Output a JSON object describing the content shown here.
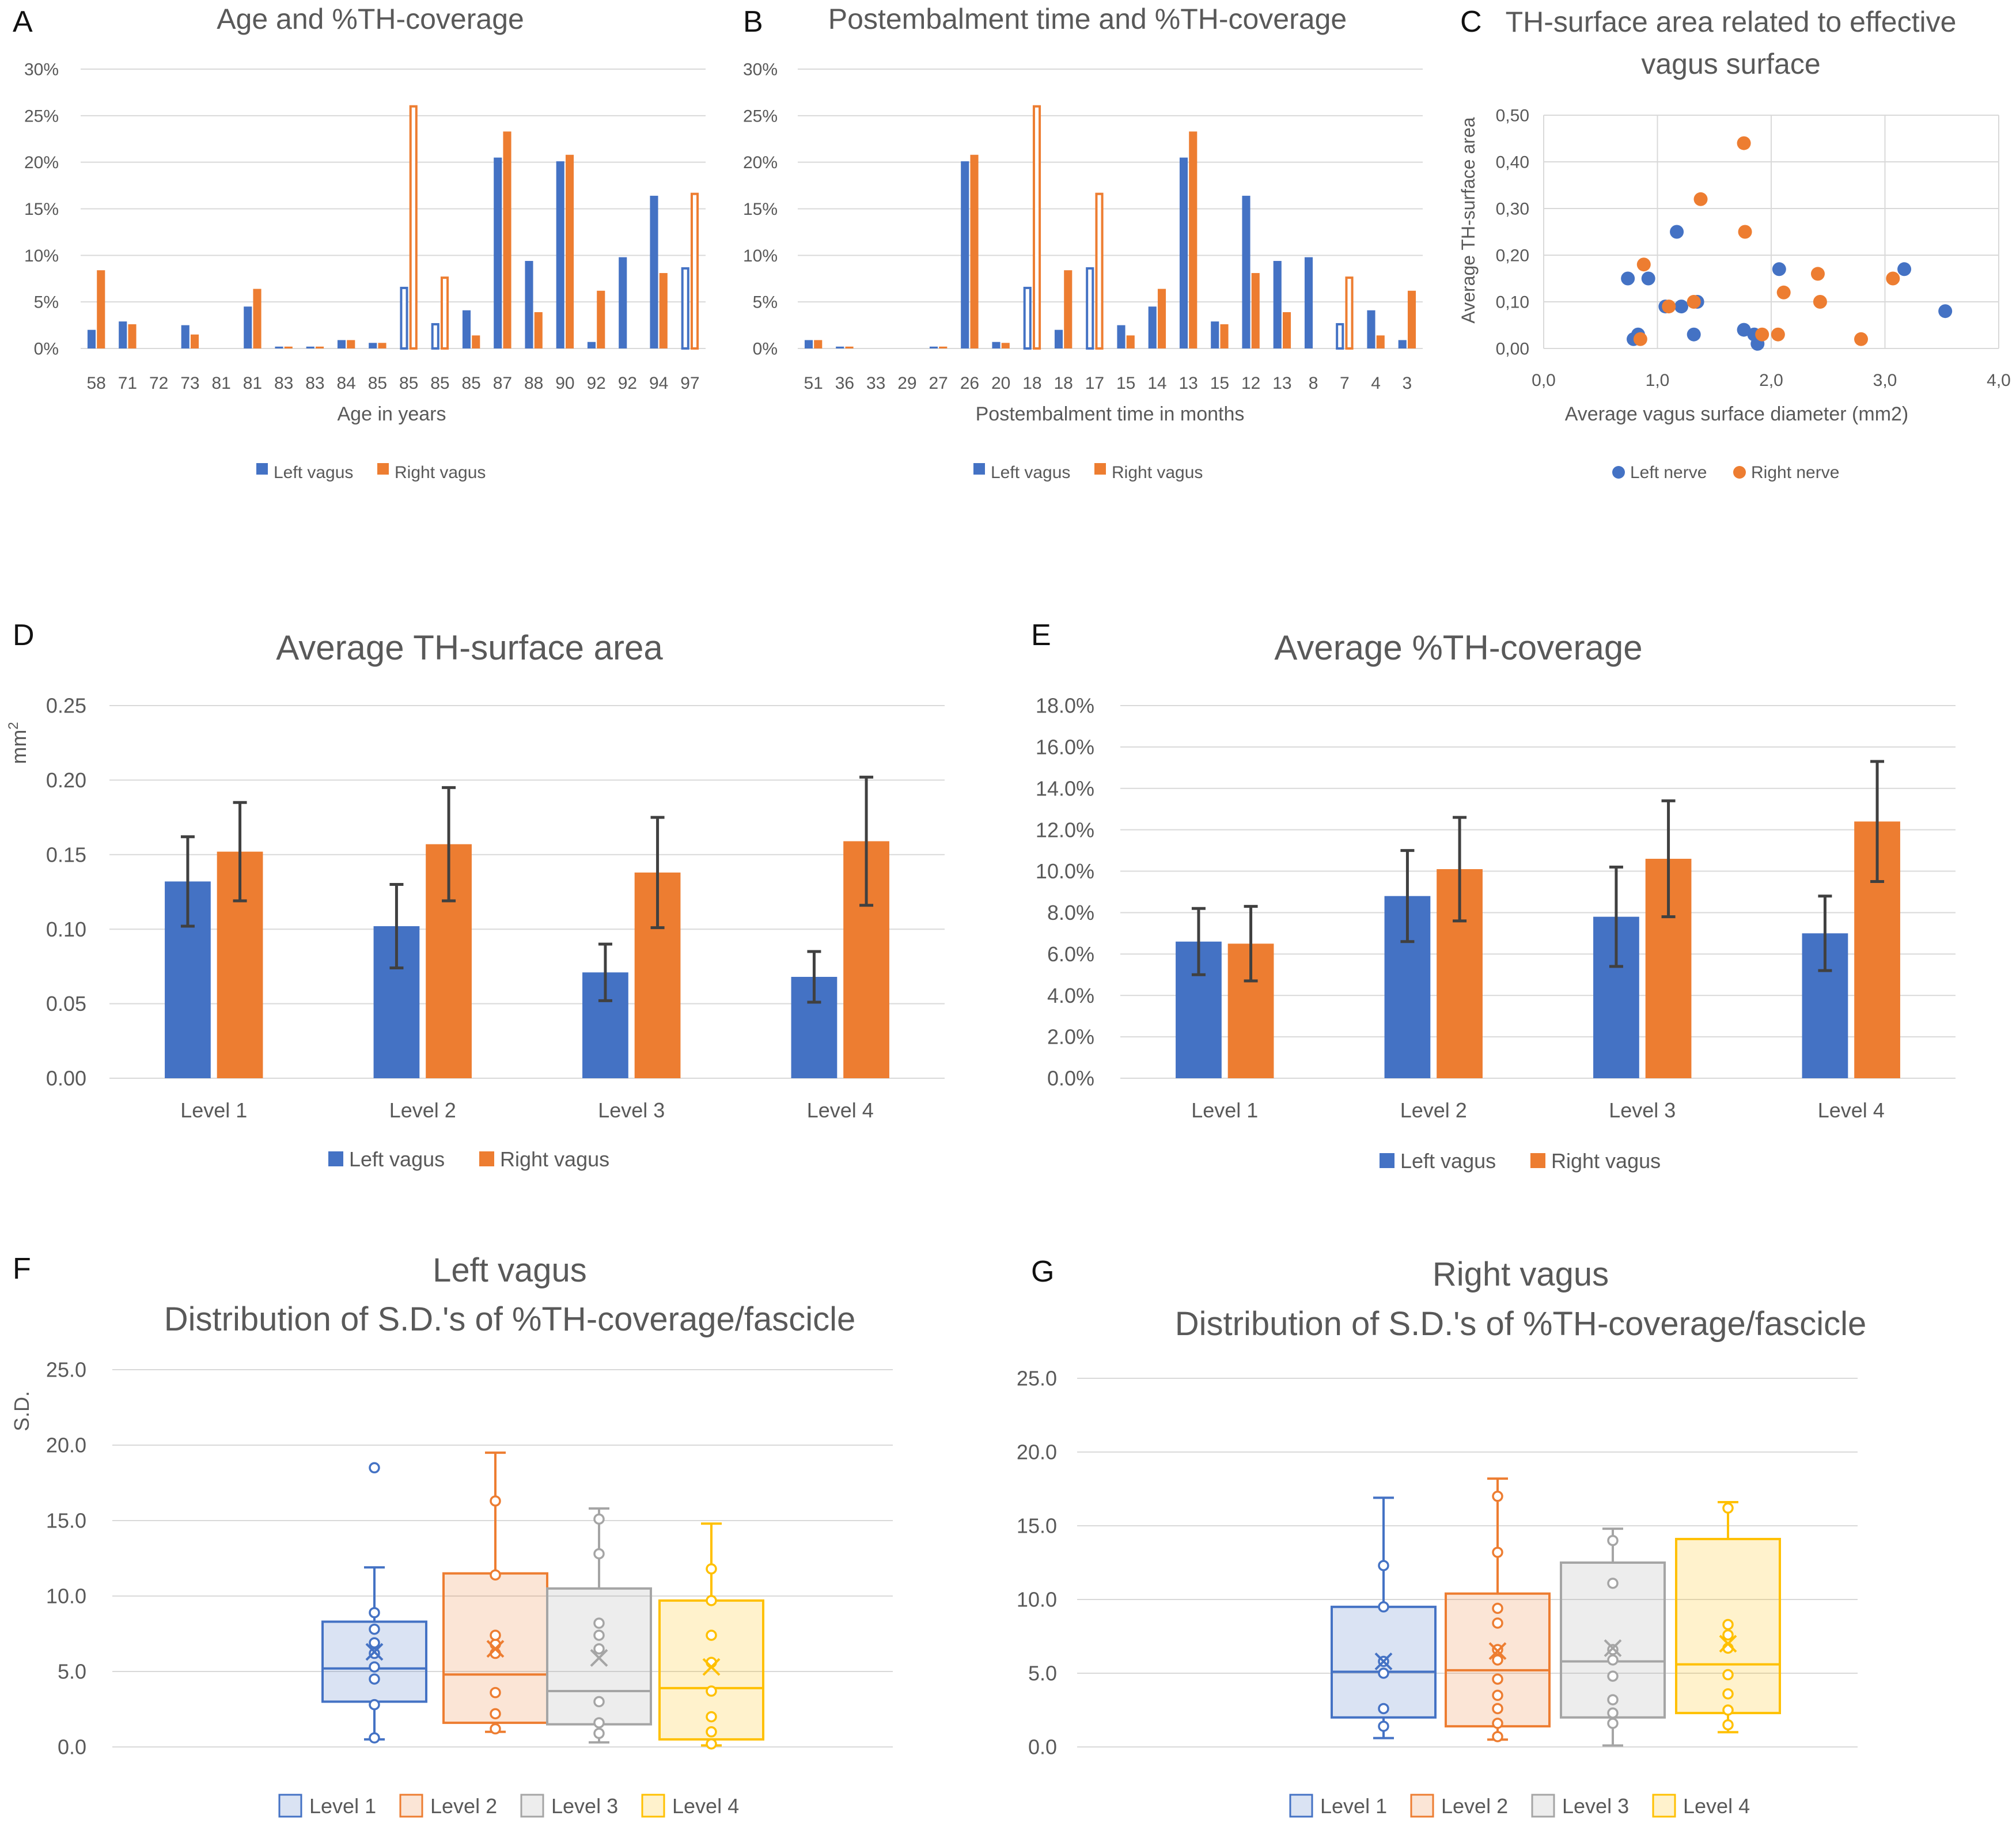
{
  "colors": {
    "left": "#4472C4",
    "right": "#ED7D31",
    "level1": "#4472C4",
    "level2": "#ED7D31",
    "level3": "#A5A5A5",
    "level4": "#FFC000",
    "grid": "#D9D9D9",
    "axis_text": "#595959",
    "title_text": "#595959",
    "error": "#404040"
  },
  "chart_data": [
    {
      "id": "A",
      "letter": "A",
      "type": "bar",
      "title": "Age and %TH-coverage",
      "xlabel": "Age in years",
      "ylabel": "",
      "ylim": [
        0,
        30
      ],
      "yticks": [
        "0%",
        "5%",
        "10%",
        "15%",
        "20%",
        "25%",
        "30%"
      ],
      "categories": [
        "58",
        "71",
        "72",
        "73",
        "81",
        "81",
        "83",
        "83",
        "84",
        "85",
        "85",
        "85",
        "85",
        "87",
        "88",
        "90",
        "92",
        "92",
        "94",
        "97"
      ],
      "series": [
        {
          "name": "Left vagus",
          "values": [
            2.0,
            2.9,
            0,
            2.5,
            0,
            4.5,
            0.2,
            0.2,
            0.9,
            0.6,
            6.5,
            2.6,
            4.1,
            20.5,
            9.4,
            20.1,
            0.7,
            9.8,
            16.4,
            8.6
          ],
          "hollow": [
            false,
            false,
            false,
            false,
            false,
            false,
            false,
            false,
            false,
            false,
            true,
            true,
            false,
            false,
            false,
            false,
            false,
            false,
            false,
            true
          ]
        },
        {
          "name": "Right vagus",
          "values": [
            8.4,
            2.6,
            0,
            1.5,
            0,
            6.4,
            0.2,
            0.2,
            0.9,
            0.6,
            26.0,
            7.6,
            1.4,
            23.3,
            3.9,
            20.8,
            6.2,
            0,
            8.1,
            16.6
          ],
          "hollow": [
            false,
            false,
            false,
            false,
            false,
            false,
            false,
            false,
            false,
            false,
            true,
            true,
            false,
            false,
            false,
            false,
            false,
            false,
            false,
            true
          ]
        }
      ],
      "legend": [
        "Left vagus",
        "Right vagus"
      ]
    },
    {
      "id": "B",
      "letter": "B",
      "type": "bar",
      "title": "Postembalment time and %TH-coverage",
      "xlabel": "Postembalment time in months",
      "ylabel": "",
      "ylim": [
        0,
        30
      ],
      "yticks": [
        "0%",
        "5%",
        "10%",
        "15%",
        "20%",
        "25%",
        "30%"
      ],
      "categories": [
        "51",
        "36",
        "33",
        "29",
        "27",
        "26",
        "20",
        "18",
        "18",
        "17",
        "15",
        "14",
        "13",
        "15",
        "12",
        "13",
        "8",
        "7",
        "4",
        "3"
      ],
      "series": [
        {
          "name": "Left vagus",
          "values": [
            0.9,
            0.2,
            0,
            0,
            0.2,
            20.1,
            0.7,
            6.5,
            2.0,
            8.6,
            2.5,
            4.5,
            20.5,
            2.9,
            16.4,
            9.4,
            9.8,
            2.6,
            4.1,
            0.9
          ],
          "hollow": [
            false,
            false,
            false,
            false,
            false,
            false,
            false,
            true,
            false,
            true,
            false,
            false,
            false,
            false,
            false,
            false,
            false,
            true,
            false,
            false
          ]
        },
        {
          "name": "Right vagus",
          "values": [
            0.9,
            0.2,
            0,
            0,
            0.2,
            20.8,
            0.6,
            26.0,
            8.4,
            16.6,
            1.4,
            6.4,
            23.3,
            2.6,
            8.1,
            3.9,
            0,
            7.6,
            1.4,
            6.2
          ],
          "hollow": [
            false,
            false,
            false,
            false,
            false,
            false,
            false,
            true,
            false,
            true,
            false,
            false,
            false,
            false,
            false,
            false,
            false,
            true,
            false,
            false
          ]
        }
      ],
      "legend": [
        "Left vagus",
        "Right vagus"
      ]
    },
    {
      "id": "C",
      "letter": "C",
      "type": "scatter",
      "title": [
        "TH-surface area related to effective",
        "vagus surface"
      ],
      "xlabel": "Average vagus surface diameter (mm2)",
      "ylabel": "Average TH-surface area",
      "xlim": [
        0,
        4
      ],
      "ylim": [
        0,
        0.5
      ],
      "xticks": [
        "0,0",
        "1,0",
        "2,0",
        "3,0",
        "4,0"
      ],
      "yticks": [
        "0,00",
        "0,10",
        "0,20",
        "0,30",
        "0,40",
        "0,50"
      ],
      "series": [
        {
          "name": "Left nerve",
          "points": [
            [
              0.74,
              0.15
            ],
            [
              0.79,
              0.02
            ],
            [
              0.83,
              0.03
            ],
            [
              0.92,
              0.15
            ],
            [
              1.07,
              0.09
            ],
            [
              1.17,
              0.25
            ],
            [
              1.21,
              0.09
            ],
            [
              1.32,
              0.03
            ],
            [
              1.35,
              0.1
            ],
            [
              1.76,
              0.04
            ],
            [
              1.85,
              0.03
            ],
            [
              1.88,
              0.01
            ],
            [
              2.07,
              0.17
            ],
            [
              3.17,
              0.17
            ],
            [
              3.53,
              0.08
            ]
          ]
        },
        {
          "name": "Right nerve",
          "points": [
            [
              0.85,
              0.02
            ],
            [
              0.88,
              0.18
            ],
            [
              1.1,
              0.09
            ],
            [
              1.32,
              0.1
            ],
            [
              1.38,
              0.32
            ],
            [
              1.76,
              0.44
            ],
            [
              1.77,
              0.25
            ],
            [
              1.92,
              0.03
            ],
            [
              2.06,
              0.03
            ],
            [
              2.11,
              0.12
            ],
            [
              2.41,
              0.16
            ],
            [
              2.43,
              0.1
            ],
            [
              2.79,
              0.02
            ],
            [
              3.07,
              0.15
            ]
          ]
        }
      ],
      "legend": [
        "Left nerve",
        "Right nerve"
      ]
    },
    {
      "id": "D",
      "letter": "D",
      "type": "bar",
      "title": "Average TH-surface area",
      "xlabel": "",
      "ylabel": "mm",
      "ylabel_sup": "2",
      "ylim": [
        0,
        0.25
      ],
      "yticks": [
        "0.00",
        "0.05",
        "0.10",
        "0.15",
        "0.20",
        "0.25"
      ],
      "categories": [
        "Level 1",
        "Level 2",
        "Level 3",
        "Level 4"
      ],
      "series": [
        {
          "name": "Left vagus",
          "values": [
            0.132,
            0.102,
            0.071,
            0.068
          ],
          "errors": [
            0.03,
            0.028,
            0.019,
            0.017
          ]
        },
        {
          "name": "Right vagus",
          "values": [
            0.152,
            0.157,
            0.138,
            0.159
          ],
          "errors": [
            0.033,
            0.038,
            0.037,
            0.043
          ]
        }
      ],
      "legend": [
        "Left vagus",
        "Right vagus"
      ]
    },
    {
      "id": "E",
      "letter": "E",
      "type": "bar",
      "title": "Average %TH-coverage",
      "xlabel": "",
      "ylabel": "",
      "ylim": [
        0,
        18
      ],
      "yticks": [
        "0.0%",
        "2.0%",
        "4.0%",
        "6.0%",
        "8.0%",
        "10.0%",
        "12.0%",
        "14.0%",
        "16.0%",
        "18.0%"
      ],
      "categories": [
        "Level 1",
        "Level 2",
        "Level 3",
        "Level 4"
      ],
      "series": [
        {
          "name": "Left vagus",
          "values": [
            6.6,
            8.8,
            7.8,
            7.0
          ],
          "errors": [
            1.6,
            2.2,
            2.4,
            1.8
          ]
        },
        {
          "name": "Right vagus",
          "values": [
            6.5,
            10.1,
            10.6,
            12.4
          ],
          "errors": [
            1.8,
            2.5,
            2.8,
            2.9
          ]
        }
      ],
      "legend": [
        "Left vagus",
        "Right vagus"
      ]
    },
    {
      "id": "F",
      "letter": "F",
      "type": "box",
      "title": [
        "Left vagus",
        "Distribution of S.D.'s of %TH-coverage/fascicle"
      ],
      "xlabel": "",
      "ylabel": "S.D.",
      "ylim": [
        0,
        25
      ],
      "yticks": [
        "0.0",
        "5.0",
        "10.0",
        "15.0",
        "20.0",
        "25.0"
      ],
      "boxes": [
        {
          "name": "Level 1",
          "min": 0.5,
          "q1": 3.0,
          "median": 5.2,
          "q3": 8.3,
          "max": 11.9,
          "mean": 6.3,
          "points": [
            0.6,
            2.8,
            4.5,
            5.3,
            6.2,
            6.9,
            7.8,
            8.9,
            18.5
          ]
        },
        {
          "name": "Level 2",
          "min": 1.0,
          "q1": 1.6,
          "median": 4.8,
          "q3": 11.5,
          "max": 19.5,
          "mean": 6.5,
          "points": [
            1.2,
            2.2,
            3.6,
            6.2,
            6.8,
            7.4,
            11.4,
            16.3
          ]
        },
        {
          "name": "Level 3",
          "min": 0.3,
          "q1": 1.5,
          "median": 3.7,
          "q3": 10.5,
          "max": 15.8,
          "mean": 5.9,
          "points": [
            0.9,
            1.6,
            3.0,
            6.5,
            7.4,
            8.2,
            12.8,
            15.1
          ]
        },
        {
          "name": "Level 4",
          "min": 0.1,
          "q1": 0.5,
          "median": 3.9,
          "q3": 9.7,
          "max": 14.8,
          "mean": 5.3,
          "points": [
            0.2,
            1.0,
            2.0,
            3.7,
            5.6,
            7.4,
            9.7,
            11.8
          ]
        }
      ],
      "legend": [
        "Level 1",
        "Level 2",
        "Level 3",
        "Level 4"
      ]
    },
    {
      "id": "G",
      "letter": "G",
      "type": "box",
      "title": [
        "Right vagus",
        "Distribution of S.D.'s of %TH-coverage/fascicle"
      ],
      "xlabel": "",
      "ylabel": "",
      "ylim": [
        0,
        25
      ],
      "yticks": [
        "0.0",
        "5.0",
        "10.0",
        "15.0",
        "20.0",
        "25.0"
      ],
      "boxes": [
        {
          "name": "Level 1",
          "min": 0.6,
          "q1": 2.0,
          "median": 5.1,
          "q3": 9.5,
          "max": 16.9,
          "mean": 5.8,
          "points": [
            1.4,
            2.6,
            5.0,
            5.8,
            9.5,
            12.3
          ]
        },
        {
          "name": "Level 2",
          "min": 0.5,
          "q1": 1.4,
          "median": 5.2,
          "q3": 10.4,
          "max": 18.2,
          "mean": 6.5,
          "points": [
            0.7,
            1.6,
            2.6,
            3.5,
            4.6,
            5.9,
            6.6,
            8.4,
            9.4,
            13.2,
            17.0
          ]
        },
        {
          "name": "Level 3",
          "min": 0.1,
          "q1": 2.0,
          "median": 5.8,
          "q3": 12.5,
          "max": 14.8,
          "mean": 6.7,
          "points": [
            1.6,
            2.3,
            3.2,
            4.8,
            5.9,
            6.6,
            11.1,
            14.0
          ]
        },
        {
          "name": "Level 4",
          "min": 1.0,
          "q1": 2.3,
          "median": 5.6,
          "q3": 14.1,
          "max": 16.6,
          "mean": 7.0,
          "points": [
            1.5,
            2.5,
            3.6,
            4.9,
            6.7,
            7.6,
            8.3,
            16.2
          ]
        }
      ],
      "legend": [
        "Level 1",
        "Level 2",
        "Level 3",
        "Level 4"
      ]
    }
  ]
}
